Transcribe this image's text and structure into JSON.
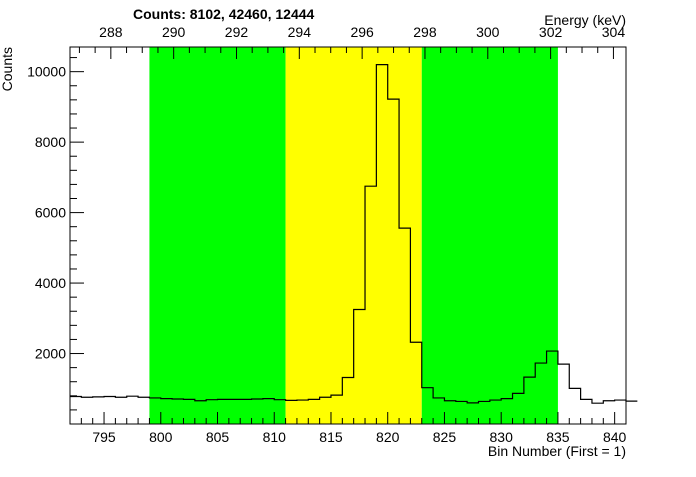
{
  "chart_data": {
    "type": "histogram",
    "title": "Counts:   8102,   42460,   12444",
    "xlabel": "Bin Number (First = 1)",
    "ylabel": "Counts",
    "x2label": "Energy (keV)",
    "xlim": [
      792,
      841
    ],
    "ylim": [
      0,
      10700
    ],
    "x_ticks": [
      795,
      800,
      805,
      810,
      815,
      820,
      825,
      830,
      835,
      840
    ],
    "y_ticks": [
      2000,
      4000,
      6000,
      8000,
      10000
    ],
    "energy_ticks": [
      288,
      290,
      292,
      294,
      296,
      298,
      300,
      302,
      304
    ],
    "energy_axis": {
      "bin_a": 792,
      "energy_a": 286.7,
      "bin_b": 841,
      "energy_b": 304.4
    },
    "grid": false,
    "legend": "none",
    "regions": [
      {
        "label": "background-left",
        "start": 799,
        "end": 811,
        "color": "#00ff00"
      },
      {
        "label": "peak",
        "start": 811,
        "end": 823,
        "color": "#ffff00"
      },
      {
        "label": "background-right",
        "start": 823,
        "end": 835,
        "color": "#00ff00"
      }
    ],
    "bins": {
      "start": 792,
      "width": 1,
      "values": [
        780,
        760,
        770,
        780,
        760,
        790,
        760,
        740,
        720,
        710,
        700,
        660,
        690,
        700,
        700,
        700,
        710,
        720,
        690,
        670,
        680,
        700,
        760,
        820,
        1320,
        3250,
        6750,
        10200,
        9220,
        5560,
        2320,
        1030,
        740,
        660,
        640,
        600,
        640,
        680,
        720,
        870,
        1330,
        1730,
        2070,
        1700,
        1010,
        700,
        590,
        660,
        680,
        650
      ]
    },
    "colors": {
      "background": "#ffffff",
      "frame": "#000000",
      "line": "#000000"
    }
  }
}
